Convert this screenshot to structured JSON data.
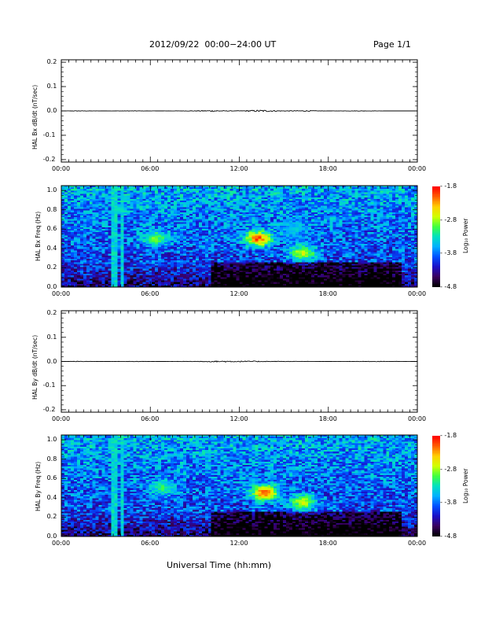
{
  "header": {
    "title": "2012/09/22  00:00−24:00 UT",
    "page": "Page 1/1"
  },
  "x_axis_title": "Universal Time (hh:mm)",
  "x_ticks": [
    "00:00",
    "06:00",
    "12:00",
    "18:00",
    "00:00"
  ],
  "colorbar": {
    "ticks": [
      "-1.8",
      "-2.8",
      "-3.8",
      "-4.8"
    ],
    "title": "Log₁₀ Power",
    "colors": [
      "#000000",
      "#3a0060",
      "#1a10c8",
      "#0050ff",
      "#00b0ff",
      "#00e0c0",
      "#40ff40",
      "#d0ff00",
      "#ffd000",
      "#ff6000",
      "#ff0000"
    ]
  },
  "chart_data": [
    {
      "type": "line",
      "ylabel": "HAL Bx dB/dt (nT/sec)",
      "y_ticks": [
        "0.2",
        "0.1",
        "0.0",
        "-0.1",
        "-0.2"
      ],
      "ylim": [
        -0.21,
        0.21
      ],
      "xlim": [
        0,
        24
      ],
      "series": [
        {
          "x": [
            0,
            1,
            3,
            5,
            6.5,
            9,
            9.5,
            10.5,
            11,
            12,
            12.8,
            13.5,
            14,
            15,
            16.5,
            18,
            20,
            22,
            24
          ],
          "y": [
            0.0,
            0.001,
            0.0,
            0.001,
            0.0,
            0.001,
            0.002,
            0.003,
            0.001,
            0.001,
            0.003,
            0.004,
            0.003,
            0.001,
            0.002,
            0.0,
            0.001,
            0.0,
            0.0
          ]
        }
      ]
    },
    {
      "type": "heatmap",
      "ylabel": "HAL Bx Freq (Hz)",
      "y_ticks": [
        "1.0",
        "0.8",
        "0.6",
        "0.4",
        "0.2",
        "0.0"
      ],
      "ylim": [
        0,
        1.05
      ],
      "xlim": [
        0,
        24
      ],
      "color_range": [
        -4.8,
        -1.8
      ],
      "features": [
        {
          "t": 6.3,
          "f": 0.5,
          "level": -2.8
        },
        {
          "t": 13.3,
          "f": 0.5,
          "level": -1.8
        },
        {
          "t": 16.3,
          "f": 0.35,
          "level": -2.5
        },
        {
          "t": 15.7,
          "f": 0.6,
          "level": -3.4
        }
      ]
    },
    {
      "type": "line",
      "ylabel": "HAL By dB/dt (nT/sec)",
      "y_ticks": [
        "0.2",
        "0.1",
        "0.0",
        "-0.1",
        "-0.2"
      ],
      "ylim": [
        -0.21,
        0.21
      ],
      "xlim": [
        0,
        24
      ],
      "series": [
        {
          "x": [
            0,
            1,
            3,
            5,
            6.5,
            9,
            10,
            11,
            12,
            13,
            14,
            15,
            18,
            21,
            24
          ],
          "y": [
            0.0,
            0.001,
            0.0,
            0.001,
            0.0,
            0.001,
            0.002,
            0.003,
            0.002,
            0.002,
            0.001,
            0.001,
            0.0,
            0.001,
            0.0
          ]
        }
      ]
    },
    {
      "type": "heatmap",
      "ylabel": "HAL By Freq (Hz)",
      "y_ticks": [
        "1.0",
        "0.8",
        "0.6",
        "0.4",
        "0.2",
        "0.0"
      ],
      "ylim": [
        0,
        1.05
      ],
      "xlim": [
        0,
        24
      ],
      "color_range": [
        -4.8,
        -1.8
      ],
      "features": [
        {
          "t": 6.8,
          "f": 0.5,
          "level": -3.0
        },
        {
          "t": 13.7,
          "f": 0.45,
          "level": -1.8
        },
        {
          "t": 16.3,
          "f": 0.35,
          "level": -2.5
        }
      ]
    }
  ]
}
